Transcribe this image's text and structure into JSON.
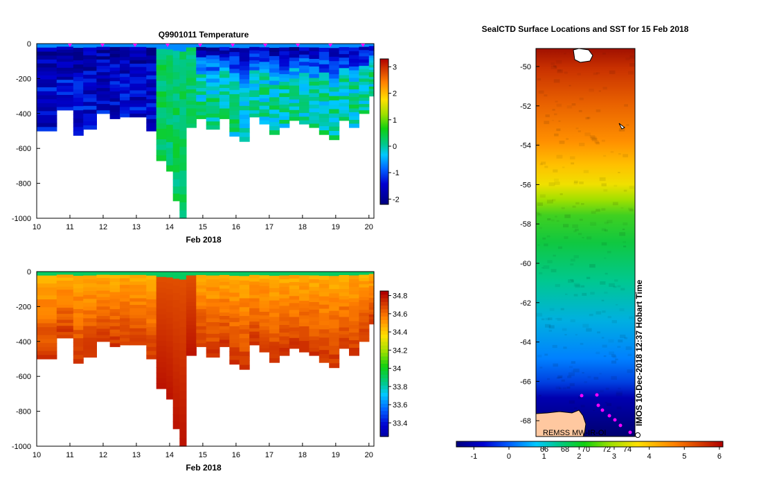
{
  "chart_data": [
    {
      "type": "heatmap",
      "title": "Q9901011  Temperature",
      "xlabel": "Feb 2018",
      "x_ticks": [
        "10",
        "11",
        "12",
        "13",
        "14",
        "15",
        "16",
        "17",
        "18",
        "19",
        "20"
      ],
      "y_ticks": [
        "0",
        "-200",
        "-400",
        "-600",
        "-800",
        "-1000"
      ],
      "ylim": [
        -1000,
        0
      ],
      "xlim": [
        10,
        20
      ],
      "colorbar_ticks": [
        "3",
        "2",
        "1",
        "0",
        "-1",
        "-2"
      ],
      "colorbar_range": [
        -2.2,
        3.3
      ],
      "variable": "temperature",
      "profile_depths": [
        [
          10,
          -500
        ],
        [
          10.6,
          -380
        ],
        [
          11.1,
          -525
        ],
        [
          11.4,
          -490
        ],
        [
          11.8,
          -400
        ],
        [
          12.2,
          -430
        ],
        [
          12.5,
          -420
        ],
        [
          12.8,
          -420
        ],
        [
          13.3,
          -500
        ],
        [
          13.6,
          -670
        ],
        [
          13.9,
          -730
        ],
        [
          14.1,
          -900
        ],
        [
          14.3,
          -1000
        ],
        [
          14.5,
          -480
        ],
        [
          14.8,
          -430
        ],
        [
          15.1,
          -490
        ],
        [
          15.5,
          -430
        ],
        [
          15.8,
          -530
        ],
        [
          16.1,
          -560
        ],
        [
          16.4,
          -420
        ],
        [
          16.7,
          -460
        ],
        [
          17.0,
          -520
        ],
        [
          17.3,
          -480
        ],
        [
          17.6,
          -440
        ],
        [
          17.9,
          -460
        ],
        [
          18.2,
          -480
        ],
        [
          18.5,
          -520
        ],
        [
          18.8,
          -550
        ],
        [
          19.1,
          -440
        ],
        [
          19.4,
          -480
        ],
        [
          19.7,
          -400
        ],
        [
          20.0,
          -300
        ]
      ]
    },
    {
      "type": "heatmap",
      "title": "",
      "xlabel": "Feb 2018",
      "x_ticks": [
        "10",
        "11",
        "12",
        "13",
        "14",
        "15",
        "16",
        "17",
        "18",
        "19",
        "20"
      ],
      "y_ticks": [
        "0",
        "-200",
        "-400",
        "-600",
        "-800",
        "-1000"
      ],
      "ylim": [
        -1000,
        0
      ],
      "xlim": [
        10,
        20
      ],
      "colorbar_ticks": [
        "34.8",
        "34.6",
        "34.4",
        "34.2",
        "34",
        "33.8",
        "33.6",
        "33.4"
      ],
      "colorbar_range": [
        33.25,
        34.85
      ],
      "variable": "salinity"
    },
    {
      "type": "heatmap",
      "title": "SealCTD Surface Locations and SST for 15 Feb 2018",
      "y_ticks": [
        "-50",
        "-52",
        "-54",
        "-56",
        "-58",
        "-60",
        "-62",
        "-64",
        "-66",
        "-68"
      ],
      "ylim": [
        -69,
        -49
      ],
      "colorbar_ticks": [
        "-1",
        "0",
        "1",
        "2",
        "3",
        "4",
        "5",
        "6"
      ],
      "colorbar_range": [
        -1.5,
        6.1
      ],
      "colorbar_inner_labels": [
        "66",
        "68",
        "70",
        "72",
        "74"
      ],
      "credit": "REMSS MW-IR-OI",
      "side_text": "IMOS 10-Dec-2018 12:37 Hobart Time",
      "colors": {
        "land": "#ffc8a0",
        "marker": "#ff00ff"
      }
    }
  ]
}
